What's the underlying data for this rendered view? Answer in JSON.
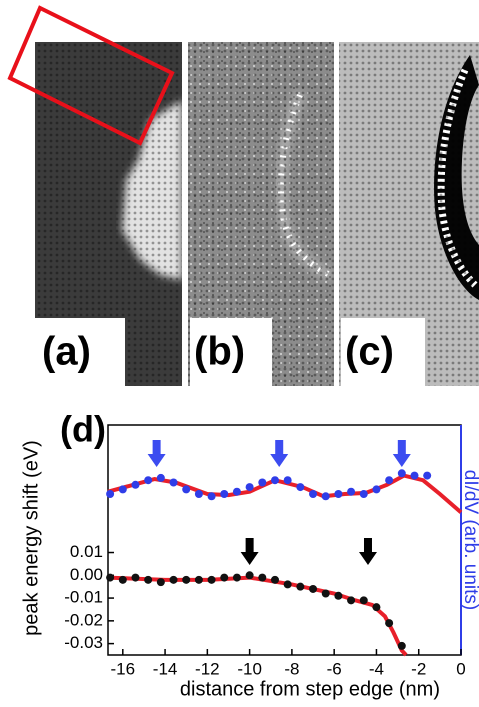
{
  "panels": [
    {
      "label": "(a)"
    },
    {
      "label": "(b)"
    },
    {
      "label": "(c)"
    }
  ],
  "chart_data": {
    "type": "scatter",
    "title": "(d)",
    "x_label": "distance from step edge (nm)",
    "y_label": "peak energy shift (eV)",
    "y2_label": "dI/dV (arb. units)",
    "xlim": [
      -16.7,
      0
    ],
    "xticks": [
      -16,
      -14,
      -12,
      -10,
      -8,
      -6,
      -4,
      -2,
      0
    ],
    "ylim": [
      -0.035,
      0.066
    ],
    "yticks": [
      0.01,
      {
        "value": 0,
        "label": "0.00"
      },
      -0.01,
      -0.02,
      -0.03
    ],
    "y2lim": [
      0,
      1
    ],
    "series": [
      {
        "style": "points",
        "axis": "y2",
        "color": "#2f3de8",
        "x": [
          -16.6,
          -16.0,
          -15.4,
          -14.8,
          -14.2,
          -13.6,
          -13.0,
          -12.4,
          -11.8,
          -11.2,
          -10.6,
          -10.0,
          -9.4,
          -8.8,
          -8.2,
          -7.6,
          -7.0,
          -6.4,
          -5.8,
          -5.2,
          -4.6,
          -4.0,
          -3.4,
          -2.8,
          -2.2,
          -1.6
        ],
        "values": [
          0.7,
          0.72,
          0.74,
          0.76,
          0.77,
          0.75,
          0.72,
          0.7,
          0.69,
          0.7,
          0.71,
          0.73,
          0.75,
          0.76,
          0.76,
          0.73,
          0.7,
          0.69,
          0.7,
          0.71,
          0.7,
          0.72,
          0.76,
          0.79,
          0.78,
          0.78
        ]
      },
      {
        "style": "points",
        "color": "#111111",
        "x": [
          -16.6,
          -16.0,
          -15.4,
          -14.8,
          -14.2,
          -13.6,
          -13.0,
          -12.4,
          -11.8,
          -11.2,
          -10.6,
          -10.0,
          -9.4,
          -8.8,
          -8.2,
          -7.6,
          -7.0,
          -6.4,
          -5.8,
          -5.2,
          -4.6,
          -4.0,
          -3.4,
          -2.8
        ],
        "values": [
          -0.001,
          -0.002,
          -0.001,
          -0.002,
          -0.003,
          -0.002,
          -0.002,
          -0.002,
          -0.002,
          -0.001,
          -0.001,
          0.0,
          -0.001,
          -0.002,
          -0.004,
          -0.005,
          -0.006,
          -0.008,
          -0.009,
          -0.011,
          -0.011,
          -0.014,
          -0.021,
          -0.031
        ]
      },
      {
        "style": "line",
        "axis": "y2",
        "color": "#e8202a",
        "x": [
          -16.7,
          -15.5,
          -14.5,
          -13.5,
          -12,
          -11,
          -10,
          -8.8,
          -7.5,
          -6.5,
          -5.5,
          -4.5,
          -3.5,
          -2.7,
          -1.8,
          -1,
          0
        ],
        "values": [
          0.71,
          0.74,
          0.765,
          0.75,
          0.7,
          0.695,
          0.71,
          0.76,
          0.73,
          0.69,
          0.7,
          0.705,
          0.74,
          0.78,
          0.76,
          0.7,
          0.62
        ]
      },
      {
        "style": "line",
        "color": "#e8202a",
        "x": [
          -16.7,
          -14,
          -12,
          -10,
          -8,
          -6,
          -5,
          -4.2,
          -3.6,
          -3.2,
          -2.8,
          -2.6
        ],
        "values": [
          -0.001,
          -0.002,
          -0.002,
          -0.001,
          -0.004,
          -0.008,
          -0.011,
          -0.013,
          -0.018,
          -0.025,
          -0.033,
          -0.035
        ]
      }
    ],
    "arrows": [
      {
        "x": -14.4,
        "color": "#3c4cf0"
      },
      {
        "x": -8.6,
        "color": "#3c4cf0"
      },
      {
        "x": -2.8,
        "color": "#3c4cf0"
      },
      {
        "x": -10,
        "color": "#000000"
      },
      {
        "x": -4.4,
        "color": "#000000"
      }
    ]
  }
}
